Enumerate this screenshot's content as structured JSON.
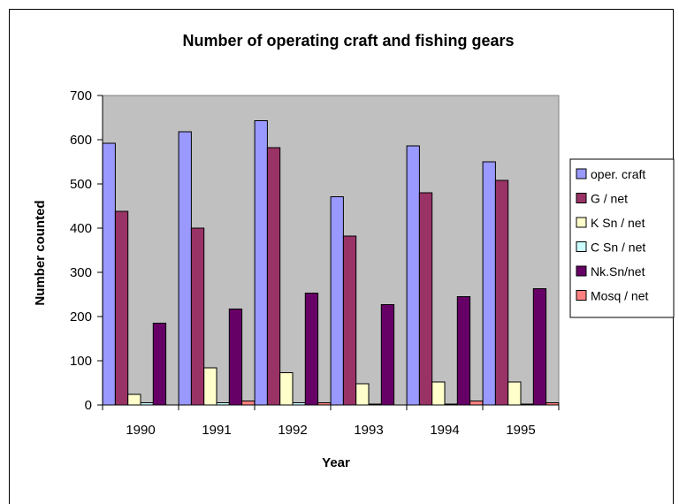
{
  "chart_data": {
    "type": "bar",
    "title": "Number of operating craft and fishing gears",
    "xlabel": "Year",
    "ylabel": "Number counted",
    "categories": [
      "1990",
      "1991",
      "1992",
      "1993",
      "1994",
      "1995"
    ],
    "ylim": [
      0,
      700
    ],
    "yticks": [
      0,
      100,
      200,
      300,
      400,
      500,
      600,
      700
    ],
    "grid": false,
    "plot_background": "#c0c0c0",
    "legend_position": "right",
    "series": [
      {
        "name": "oper. craft",
        "color": "#9999ff",
        "values": [
          592,
          618,
          643,
          471,
          586,
          550
        ]
      },
      {
        "name": "G / net",
        "color": "#993366",
        "values": [
          438,
          400,
          582,
          382,
          480,
          508
        ]
      },
      {
        "name": "K Sn / net",
        "color": "#ffffcc",
        "values": [
          24,
          84,
          73,
          48,
          52,
          52
        ]
      },
      {
        "name": "C Sn / net",
        "color": "#ccffff",
        "values": [
          5,
          5,
          5,
          2,
          2,
          2
        ]
      },
      {
        "name": "Nk.Sn/net",
        "color": "#660066",
        "values": [
          185,
          217,
          253,
          227,
          245,
          263
        ]
      },
      {
        "name": "Mosq / net",
        "color": "#ff8080",
        "values": [
          0,
          9,
          5,
          0,
          9,
          5
        ]
      }
    ]
  }
}
